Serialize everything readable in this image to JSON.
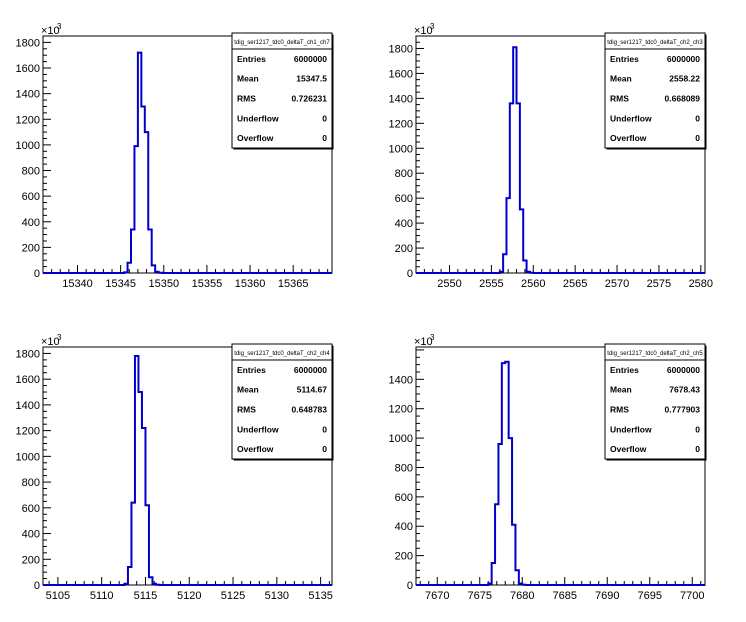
{
  "chart_data": [
    {
      "type": "bar",
      "title": "tdig_ser1217_tdc0_deltaT_ch1_ch7",
      "xlim": [
        15336.0,
        15369.5
      ],
      "xticks": [
        15340,
        15345,
        15350,
        15355,
        15360,
        15365
      ],
      "ylim": [
        0,
        1850
      ],
      "yticks": [
        0,
        200,
        400,
        600,
        800,
        1000,
        1200,
        1400,
        1600,
        1800
      ],
      "y_multiplier_label": "×10",
      "y_multiplier_exp": "3",
      "bin_edges": [
        15345.4,
        15345.8,
        15346.2,
        15346.6,
        15347.0,
        15347.4,
        15347.8,
        15348.2,
        15348.6,
        15349.0,
        15349.4,
        15349.8
      ],
      "values": [
        5,
        80,
        340,
        990,
        1720,
        1300,
        1100,
        340,
        60,
        10,
        2
      ],
      "line_color": "#0000cc",
      "stats": {
        "entries_label": "Entries",
        "entries": "6000000",
        "mean_label": "Mean",
        "mean": "15347.5",
        "rms_label": "RMS",
        "rms": "0.726231",
        "underflow_label": "Underflow",
        "underflow": "0",
        "overflow_label": "Overflow",
        "overflow": "0"
      }
    },
    {
      "type": "bar",
      "title": "tdig_ser1217_tdc0_deltaT_ch2_ch3",
      "xlim": [
        2546.0,
        2580.5
      ],
      "xticks": [
        2550,
        2555,
        2560,
        2565,
        2570,
        2575,
        2580
      ],
      "ylim": [
        0,
        1900
      ],
      "yticks": [
        0,
        200,
        400,
        600,
        800,
        1000,
        1200,
        1400,
        1600,
        1800
      ],
      "y_multiplier_label": "×10",
      "y_multiplier_exp": "3",
      "bin_edges": [
        2556.0,
        2556.4,
        2556.8,
        2557.2,
        2557.6,
        2558.0,
        2558.4,
        2558.8,
        2559.2,
        2559.6,
        2560.0
      ],
      "values": [
        10,
        150,
        600,
        1360,
        1810,
        1360,
        510,
        100,
        10,
        2
      ],
      "line_color": "#0000cc",
      "stats": {
        "entries_label": "Entries",
        "entries": "6000000",
        "mean_label": "Mean",
        "mean": "2558.22",
        "rms_label": "RMS",
        "rms": "0.668089",
        "underflow_label": "Underflow",
        "underflow": "0",
        "overflow_label": "Overflow",
        "overflow": "0"
      }
    },
    {
      "type": "bar",
      "title": "tdig_ser1217_tdc0_deltaT_ch2_ch4",
      "xlim": [
        5103.3,
        5136.3
      ],
      "xticks": [
        5105,
        5110,
        5115,
        5120,
        5125,
        5130,
        5135
      ],
      "ylim": [
        0,
        1850
      ],
      "yticks": [
        0,
        200,
        400,
        600,
        800,
        1000,
        1200,
        1400,
        1600,
        1800
      ],
      "y_multiplier_label": "×10",
      "y_multiplier_exp": "3",
      "bin_edges": [
        5112.6,
        5113.0,
        5113.4,
        5113.8,
        5114.2,
        5114.6,
        5115.0,
        5115.4,
        5115.8,
        5116.2,
        5116.6
      ],
      "values": [
        10,
        140,
        640,
        1780,
        1500,
        1220,
        620,
        60,
        10,
        2
      ],
      "line_color": "#0000cc",
      "stats": {
        "entries_label": "Entries",
        "entries": "6000000",
        "mean_label": "Mean",
        "mean": "5114.67",
        "rms_label": "RMS",
        "rms": "0.648783",
        "underflow_label": "Underflow",
        "underflow": "0",
        "overflow_label": "Overflow",
        "overflow": "0"
      }
    },
    {
      "type": "bar",
      "title": "tdig_ser1217_tdc0_deltaT_ch2_ch5",
      "xlim": [
        7667.5,
        7701.5
      ],
      "xticks": [
        7670,
        7675,
        7680,
        7685,
        7690,
        7695,
        7700
      ],
      "ylim": [
        0,
        1620
      ],
      "yticks": [
        0,
        200,
        400,
        600,
        800,
        1000,
        1200,
        1400
      ],
      "y_multiplier_label": "×10",
      "y_multiplier_exp": "3",
      "bin_edges": [
        7676.0,
        7676.4,
        7676.8,
        7677.2,
        7677.6,
        7678.0,
        7678.4,
        7678.8,
        7679.2,
        7679.6,
        7680.0,
        7680.4
      ],
      "values": [
        10,
        150,
        550,
        960,
        1510,
        1520,
        1000,
        410,
        100,
        10,
        2
      ],
      "line_color": "#0000cc",
      "stats": {
        "entries_label": "Entries",
        "entries": "6000000",
        "mean_label": "Mean",
        "mean": "7678.43",
        "rms_label": "RMS",
        "rms": "0.777903",
        "underflow_label": "Underflow",
        "underflow": "0",
        "overflow_label": "Overflow",
        "overflow": "0"
      }
    }
  ]
}
